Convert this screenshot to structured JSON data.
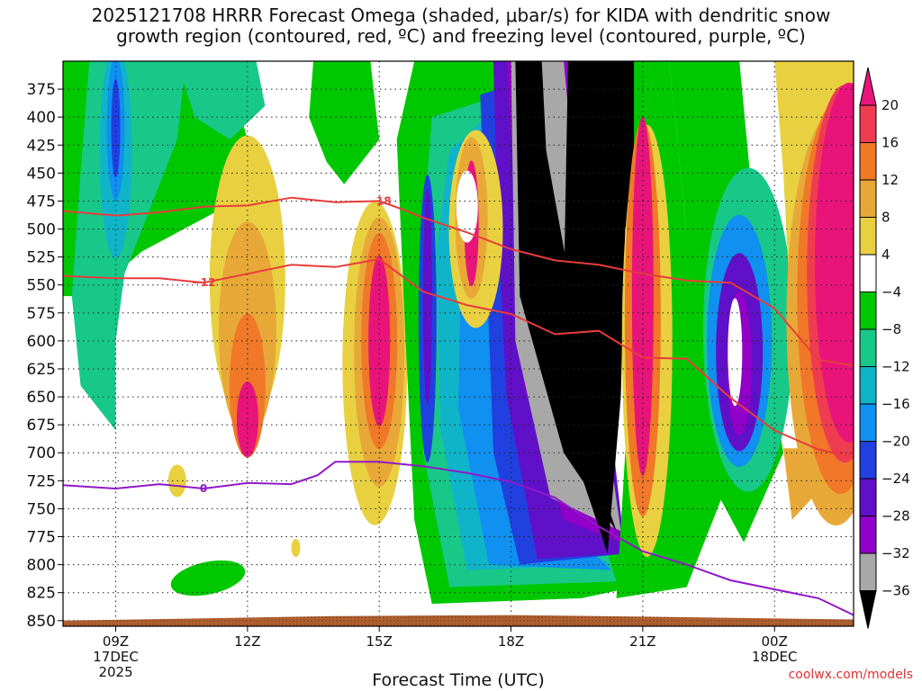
{
  "title": {
    "line1": "2025121708 HRRR Forecast Omega (shaded, μbar/s) for KIDA with dendritic snow",
    "line2": "growth region (contoured, red, ºC) and freezing level (contoured, purple, ºC)"
  },
  "credit": "coolwx.com/models",
  "chart_data": {
    "type": "heatmap",
    "xlabel": "Forecast Time (UTC)",
    "ylabel": "",
    "x_range_hours_utc": [
      7.8,
      25.8
    ],
    "y_range_mb": [
      350,
      855
    ],
    "x_ticks": [
      {
        "hour": 9,
        "lines": [
          "09Z",
          "17DEC",
          "2025"
        ]
      },
      {
        "hour": 12,
        "lines": [
          "12Z"
        ]
      },
      {
        "hour": 15,
        "lines": [
          "15Z"
        ]
      },
      {
        "hour": 18,
        "lines": [
          "18Z"
        ]
      },
      {
        "hour": 21,
        "lines": [
          "21Z"
        ]
      },
      {
        "hour": 24,
        "lines": [
          "00Z",
          "18DEC"
        ]
      }
    ],
    "y_ticks": [
      375,
      400,
      425,
      450,
      475,
      500,
      525,
      550,
      575,
      600,
      625,
      650,
      675,
      700,
      725,
      750,
      775,
      800,
      825,
      850
    ],
    "colorbar": {
      "ticks": [
        "20",
        "16",
        "12",
        "8",
        "4",
        "−4",
        "−8",
        "−12",
        "−16",
        "−20",
        "−24",
        "−28",
        "−32",
        "−36"
      ],
      "colors": [
        "#e8147a",
        "#f03c50",
        "#f07828",
        "#e8a838",
        "#e8d040",
        "#ffffff",
        "#00c800",
        "#18c888",
        "#10b4c8",
        "#1090f0",
        "#2040e0",
        "#6010c8",
        "#9000c8",
        "#a8a8a8",
        "#000000"
      ]
    },
    "contours": [
      {
        "label": "−18",
        "color": "#e83c3c",
        "points": [
          [
            7.8,
            484
          ],
          [
            9,
            488
          ],
          [
            10,
            485
          ],
          [
            11,
            480
          ],
          [
            12,
            479
          ],
          [
            13,
            472
          ],
          [
            14,
            476
          ],
          [
            15,
            475
          ],
          [
            15.5,
            482
          ],
          [
            16,
            490
          ],
          [
            17,
            503
          ],
          [
            18,
            518
          ],
          [
            19,
            528
          ],
          [
            20,
            532
          ],
          [
            21,
            540
          ],
          [
            22,
            546
          ],
          [
            23,
            548
          ],
          [
            24,
            571
          ],
          [
            25,
            617
          ],
          [
            25.8,
            622
          ]
        ]
      },
      {
        "label": "−12",
        "color": "#e83c3c",
        "points": [
          [
            7.8,
            542
          ],
          [
            9,
            544
          ],
          [
            10,
            544
          ],
          [
            11,
            548
          ],
          [
            12,
            540
          ],
          [
            13,
            532
          ],
          [
            14,
            534
          ],
          [
            15,
            527
          ],
          [
            16,
            556
          ],
          [
            17,
            568
          ],
          [
            18,
            576
          ],
          [
            19,
            594
          ],
          [
            20,
            591
          ],
          [
            21,
            615
          ],
          [
            22,
            616
          ],
          [
            23,
            651
          ],
          [
            24,
            680
          ],
          [
            25,
            697
          ],
          [
            25.8,
            704
          ]
        ]
      },
      {
        "label": "0",
        "color": "#9018c8",
        "points": [
          [
            7.8,
            729
          ],
          [
            9,
            732
          ],
          [
            10,
            728
          ],
          [
            11,
            732
          ],
          [
            12,
            727
          ],
          [
            13,
            728
          ],
          [
            13.6,
            720
          ],
          [
            14,
            708
          ],
          [
            15,
            708
          ],
          [
            16,
            712
          ],
          [
            17,
            718
          ],
          [
            18,
            726
          ],
          [
            19,
            740
          ],
          [
            20,
            766
          ],
          [
            21,
            788
          ],
          [
            22,
            800
          ],
          [
            23,
            814
          ],
          [
            24,
            822
          ],
          [
            25,
            830
          ],
          [
            25.8,
            845
          ]
        ]
      }
    ],
    "terrain_color": "#b06030",
    "shaded_values_ubar_per_s": [
      {
        "region": "ascent core 20Z",
        "hour": 20.2,
        "value": -40
      },
      {
        "region": "ascent core 18Z",
        "hour": 18.0,
        "value": -36
      },
      {
        "region": "descent max 21Z",
        "hour": 21.1,
        "value": 20
      },
      {
        "region": "descent max 01Z",
        "hour": 25.5,
        "value": 20
      },
      {
        "region": "descent max 12Z",
        "hour": 12.0,
        "value": 16
      },
      {
        "region": "descent max 15Z",
        "hour": 15.0,
        "value": 20
      },
      {
        "region": "ascent max 09Z",
        "hour": 9.0,
        "value": -22
      }
    ]
  }
}
